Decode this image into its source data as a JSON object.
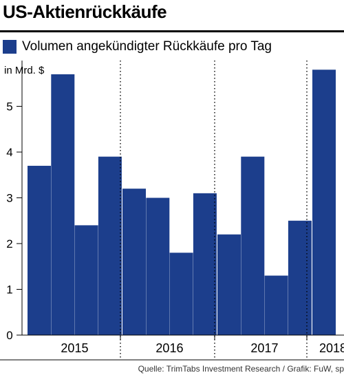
{
  "title": "US-Aktienrückkäufe",
  "source": "Quelle: TrimTabs Investment Research / Grafik: FuW, sp",
  "chart_data": {
    "type": "bar",
    "title": "US-Aktienrückkäufe",
    "ylabel": "in Mrd. $",
    "xlabel": "",
    "ylim": [
      0,
      6
    ],
    "yticks": [
      0,
      1,
      2,
      3,
      4,
      5
    ],
    "grid": false,
    "legend": "top-left",
    "series": [
      {
        "name": "Volumen angekündigter Rückkäufe pro Tag",
        "color": "#1c3e8c",
        "values": [
          3.7,
          5.7,
          2.4,
          3.9,
          3.2,
          3.0,
          1.8,
          3.1,
          2.2,
          3.9,
          1.3,
          2.5,
          5.8
        ]
      }
    ],
    "groups": [
      {
        "label": "2015",
        "count": 4
      },
      {
        "label": "2016",
        "count": 4
      },
      {
        "label": "2017",
        "count": 4
      },
      {
        "label": "2018",
        "count": 1
      }
    ]
  }
}
